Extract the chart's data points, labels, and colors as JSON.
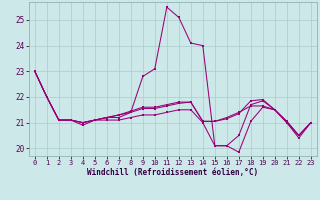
{
  "background_color": "#cce8e8",
  "line_color": "#990077",
  "grid_color": "#aacccc",
  "ylim": [
    19.7,
    25.7
  ],
  "xlim": [
    -0.5,
    23.5
  ],
  "yticks": [
    20,
    21,
    22,
    23,
    24,
    25
  ],
  "xticks": [
    0,
    1,
    2,
    3,
    4,
    5,
    6,
    7,
    8,
    9,
    10,
    11,
    12,
    13,
    14,
    15,
    16,
    17,
    18,
    19,
    20,
    21,
    22,
    23
  ],
  "xlabel": "Windchill (Refroidissement éolien,°C)",
  "lines": [
    [
      23.0,
      22.0,
      21.1,
      21.1,
      20.9,
      21.1,
      21.1,
      21.1,
      21.2,
      21.3,
      21.3,
      21.4,
      21.5,
      21.5,
      21.0,
      20.1,
      20.1,
      19.85,
      21.05,
      21.6,
      21.5,
      21.0,
      20.4,
      21.0
    ],
    [
      23.0,
      22.0,
      21.1,
      21.1,
      21.0,
      21.1,
      21.2,
      21.2,
      21.4,
      22.8,
      23.1,
      25.5,
      25.1,
      24.1,
      24.0,
      20.1,
      20.1,
      20.5,
      21.7,
      21.85,
      21.5,
      21.0,
      20.5,
      21.0
    ],
    [
      23.0,
      22.0,
      21.1,
      21.1,
      21.0,
      21.1,
      21.2,
      21.3,
      21.4,
      21.55,
      21.55,
      21.65,
      21.75,
      21.8,
      21.05,
      21.05,
      21.15,
      21.35,
      21.85,
      21.9,
      21.5,
      21.05,
      20.5,
      21.0
    ],
    [
      23.0,
      22.0,
      21.1,
      21.1,
      21.0,
      21.1,
      21.2,
      21.3,
      21.45,
      21.6,
      21.6,
      21.7,
      21.8,
      21.8,
      21.05,
      21.05,
      21.2,
      21.4,
      21.65,
      21.65,
      21.5,
      21.05,
      20.5,
      21.0
    ]
  ]
}
